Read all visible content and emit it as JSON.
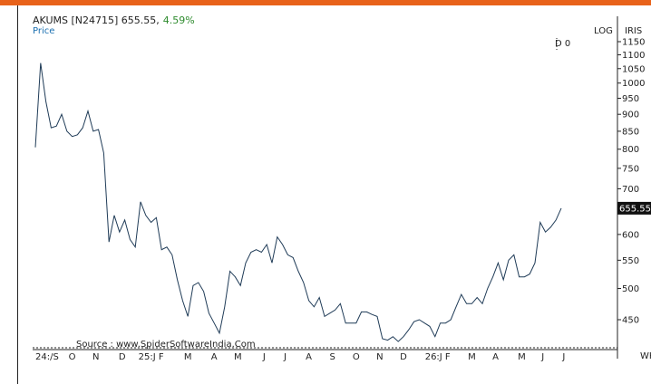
{
  "header": {
    "ticker": "AKUMS [N24715]",
    "price": "655.55,",
    "change": "4.59%",
    "subtitle": "Price",
    "scale_mode": "LOG",
    "indicator": "IRIS",
    "d_label": "D 0",
    "source": "Source : www.SpiderSoftwareIndia.Com",
    "period": "WK"
  },
  "colors": {
    "accent": "#e8621a",
    "line": "#1f3b57",
    "change_text": "#2e8b2e",
    "subtitle_text": "#1a6fb0"
  },
  "chart_data": {
    "type": "line",
    "scale": "log",
    "ylim": [
      420,
      1180
    ],
    "current_value": 655.55,
    "current_label": "655.55",
    "y_ticks": [
      1150,
      1100,
      1050,
      1000,
      950,
      900,
      850,
      800,
      750,
      700,
      650,
      600,
      550,
      500,
      450
    ],
    "x_ticks": [
      "24:/S",
      "O",
      "N",
      "D",
      "25:J F",
      "M",
      "A",
      "M",
      "J",
      "J",
      "A",
      "S",
      "O",
      "N",
      "D",
      "26:J F",
      "M",
      "A",
      "M",
      "J",
      "J"
    ],
    "x_tick_weeks": [
      0,
      7,
      11.5,
      16.5,
      22,
      29,
      34,
      38.5,
      43.5,
      47.5,
      52,
      56.5,
      61,
      65.5,
      70,
      76.5,
      83,
      87.5,
      92.5,
      96.5,
      100.5
    ],
    "values": [
      805,
      1070,
      940,
      860,
      865,
      900,
      850,
      835,
      840,
      860,
      910,
      850,
      855,
      790,
      585,
      640,
      605,
      630,
      590,
      575,
      670,
      640,
      625,
      635,
      570,
      575,
      560,
      515,
      480,
      455,
      505,
      510,
      495,
      460,
      445,
      430,
      470,
      530,
      520,
      505,
      545,
      565,
      570,
      565,
      580,
      545,
      595,
      580,
      560,
      555,
      530,
      510,
      480,
      470,
      485,
      455,
      460,
      465,
      475,
      445,
      445,
      445,
      462,
      462,
      458,
      455,
      422,
      420,
      425,
      418,
      425,
      435,
      447,
      450,
      445,
      440,
      425,
      445,
      445,
      450,
      470,
      490,
      475,
      475,
      485,
      475,
      500,
      520,
      545,
      515,
      550,
      560,
      520,
      520,
      525,
      545,
      625,
      605,
      615,
      630,
      655.55
    ]
  }
}
